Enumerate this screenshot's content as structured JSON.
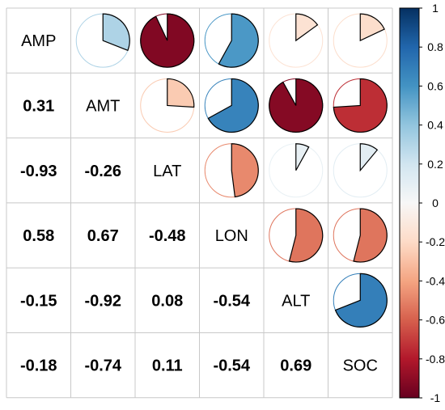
{
  "chart_data": {
    "type": "heatmap",
    "variables": [
      "AMP",
      "AMT",
      "LAT",
      "LON",
      "ALT",
      "SOC"
    ],
    "matrix": [
      [
        1,
        0.31,
        -0.93,
        0.58,
        -0.15,
        -0.18
      ],
      [
        0.31,
        1,
        -0.26,
        0.67,
        -0.92,
        -0.74
      ],
      [
        -0.93,
        -0.26,
        1,
        -0.48,
        0.08,
        0.11
      ],
      [
        0.58,
        0.67,
        -0.48,
        1,
        -0.54,
        -0.54
      ],
      [
        -0.15,
        -0.92,
        0.08,
        -0.54,
        1,
        0.69
      ],
      [
        -0.18,
        -0.74,
        0.11,
        -0.54,
        0.69,
        1
      ]
    ],
    "lower_labels": [
      [
        "0.31"
      ],
      [
        "-0.93",
        "-0.26"
      ],
      [
        "0.58",
        "0.67",
        "-0.48"
      ],
      [
        "-0.15",
        "-0.92",
        "0.08",
        "-0.54"
      ],
      [
        "-0.18",
        "-0.74",
        "0.11",
        "-0.54",
        "0.69"
      ]
    ],
    "upper_method": "pie",
    "colorbar": {
      "range": [
        -1,
        1
      ],
      "ticks": [
        "1",
        "0.8",
        "0.6",
        "0.4",
        "0.2",
        "0",
        "-0.2",
        "-0.4",
        "-0.6",
        "-0.8",
        "-1"
      ]
    },
    "colors": {
      "negative": "#67001F",
      "neutral": "#F7F7F7",
      "positive": "#053061",
      "grid": "#c8c8c8"
    },
    "title": "",
    "xlabel": "",
    "ylabel": ""
  }
}
